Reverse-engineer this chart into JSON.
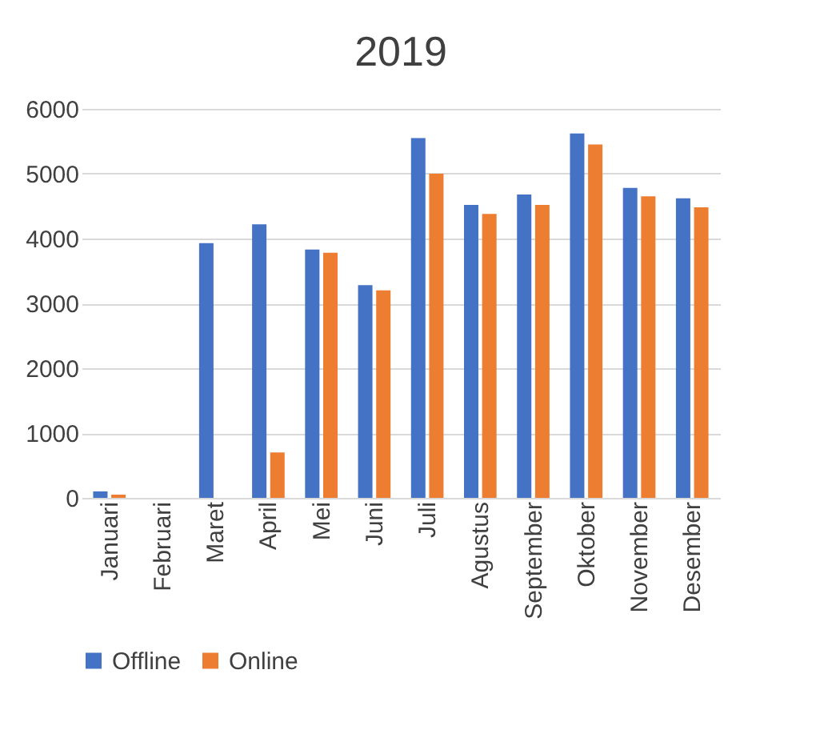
{
  "chart_data": {
    "type": "bar",
    "title": "2019",
    "categories": [
      "Januari",
      "Februari",
      "Maret",
      "April",
      "Mei",
      "Juni",
      "Juli",
      "Agustus",
      "September",
      "Oktober",
      "November",
      "Desember"
    ],
    "series": [
      {
        "name": "Offline",
        "color": "#4472c4",
        "values": [
          100,
          0,
          3930,
          4220,
          3830,
          3280,
          5550,
          4520,
          4680,
          5620,
          4780,
          4620
        ]
      },
      {
        "name": "Online",
        "color": "#ed7d31",
        "values": [
          50,
          0,
          0,
          700,
          3780,
          3200,
          5000,
          4380,
          4520,
          5450,
          4650,
          4480
        ]
      }
    ],
    "ylim": [
      0,
      6000
    ],
    "yticks": [
      0,
      1000,
      2000,
      3000,
      4000,
      5000,
      6000
    ],
    "grid": "y",
    "legend": "bottom"
  }
}
